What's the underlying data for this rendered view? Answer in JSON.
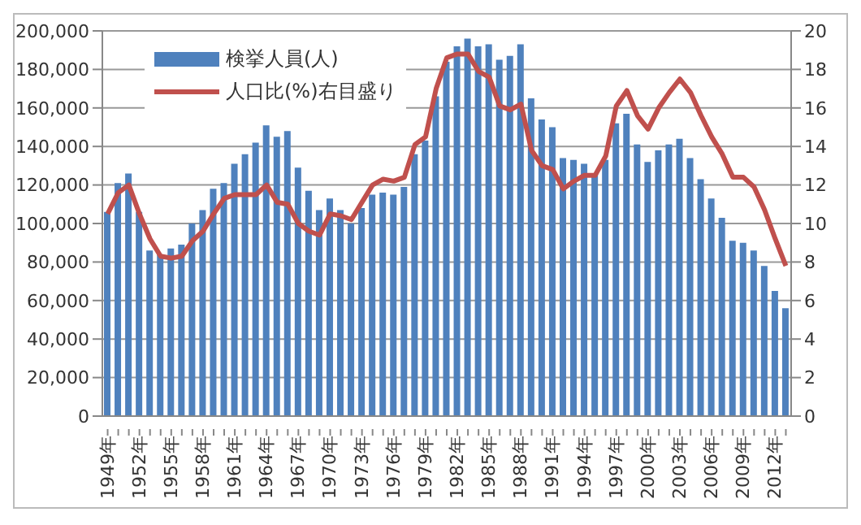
{
  "chart_data": {
    "type": "bar",
    "categories": [
      "1949年",
      null,
      null,
      "1952年",
      null,
      null,
      "1955年",
      null,
      null,
      "1958年",
      null,
      null,
      "1961年",
      null,
      null,
      "1964年",
      null,
      null,
      "1967年",
      null,
      null,
      "1970年",
      null,
      null,
      "1973年",
      null,
      null,
      "1976年",
      null,
      null,
      "1979年",
      null,
      null,
      "1982年",
      null,
      null,
      "1985年",
      null,
      null,
      "1988年",
      null,
      null,
      "1991年",
      null,
      null,
      "1994年",
      null,
      null,
      "1997年",
      null,
      null,
      "2000年",
      null,
      null,
      "2003年",
      null,
      null,
      "2006年",
      null,
      null,
      "2009年",
      null,
      null,
      "2012年",
      null
    ],
    "series": [
      {
        "name": "検挙人員(人)",
        "color": "#4f81bd",
        "values": [
          106000,
          121000,
          126000,
          106000,
          86000,
          84000,
          87000,
          89000,
          100000,
          107000,
          118000,
          121000,
          131000,
          136000,
          142000,
          151000,
          145000,
          148000,
          129000,
          117000,
          107000,
          113000,
          107000,
          100000,
          108000,
          115000,
          116000,
          115000,
          119000,
          136000,
          143000,
          166000,
          184000,
          192000,
          196000,
          192000,
          193000,
          185000,
          187000,
          193000,
          165000,
          154000,
          150000,
          134000,
          133000,
          131000,
          126000,
          133000,
          152000,
          157000,
          141000,
          132000,
          138000,
          141000,
          144000,
          134000,
          123000,
          113000,
          103000,
          91000,
          90000,
          86000,
          78000,
          65000,
          56000
        ]
      },
      {
        "name": "人口比(%)右目盛り",
        "type": "line",
        "axis": "y2",
        "color": "#c0504d",
        "values": [
          10.5,
          11.6,
          12.0,
          10.5,
          9.2,
          8.3,
          8.2,
          8.3,
          9.1,
          9.6,
          10.5,
          11.3,
          11.5,
          11.5,
          11.5,
          12.0,
          11.1,
          11.0,
          10.0,
          9.6,
          9.4,
          10.5,
          10.4,
          10.2,
          11.1,
          12.0,
          12.3,
          12.2,
          12.4,
          14.1,
          14.5,
          17.0,
          18.6,
          18.8,
          18.8,
          17.9,
          17.6,
          16.1,
          15.9,
          16.2,
          13.8,
          13.0,
          12.8,
          11.8,
          12.2,
          12.5,
          12.5,
          13.5,
          16.1,
          16.9,
          15.6,
          14.9,
          16.0,
          16.8,
          17.5,
          16.8,
          15.6,
          14.5,
          13.6,
          12.4,
          12.4,
          11.9,
          10.7,
          9.2,
          7.8
        ]
      }
    ],
    "ylim": [
      0,
      200000
    ],
    "yticks": [
      {
        "value": 0,
        "label": "0"
      },
      {
        "value": 20000,
        "label": "20,000"
      },
      {
        "value": 40000,
        "label": "40,000"
      },
      {
        "value": 60000,
        "label": "60,000"
      },
      {
        "value": 80000,
        "label": "80,000"
      },
      {
        "value": 100000,
        "label": "100,000"
      },
      {
        "value": 120000,
        "label": "120,000"
      },
      {
        "value": 140000,
        "label": "140,000"
      },
      {
        "value": 160000,
        "label": "160,000"
      },
      {
        "value": 180000,
        "label": "180,000"
      },
      {
        "value": 200000,
        "label": "200,000"
      }
    ],
    "y2lim": [
      0,
      20
    ],
    "y2ticks": [
      0,
      2,
      4,
      6,
      8,
      10,
      12,
      14,
      16,
      18,
      20
    ],
    "grid": "y",
    "legend": "top left",
    "line_style": "solid",
    "marker": "none"
  }
}
